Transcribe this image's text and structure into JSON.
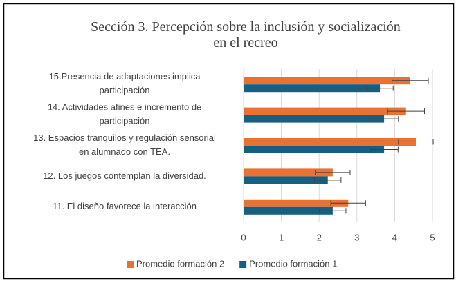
{
  "chart_data": {
    "type": "bar",
    "orientation": "horizontal",
    "title": "Sección 3. Percepción sobre la inclusión y socialización\nen el recreo",
    "categories": [
      "15.Presencia de adaptaciones implica\nparticipación",
      "14. Actividades afines e incremento de\nparticipación",
      "13. Espacios tranquilos y regulación sensorial\nen alumnado con TEA.",
      "12. Los juegos contemplan la diversidad.",
      "11. El diseño favorece la interacción"
    ],
    "series": [
      {
        "name": "Promedio formación 2",
        "color": "#e97132",
        "values": [
          4.41,
          4.3,
          4.56,
          2.36,
          2.77
        ],
        "errors": [
          0.48,
          0.49,
          0.46,
          0.46,
          0.46
        ]
      },
      {
        "name": "Promedio formación 1",
        "color": "#156082",
        "values": [
          3.61,
          3.72,
          3.72,
          2.23,
          2.36
        ],
        "errors": [
          0.35,
          0.38,
          0.37,
          0.35,
          0.35
        ]
      }
    ],
    "xlim": [
      0,
      5
    ],
    "xticks": [
      0,
      1,
      2,
      3,
      4,
      5
    ],
    "grid": true,
    "legend": "bottom"
  }
}
